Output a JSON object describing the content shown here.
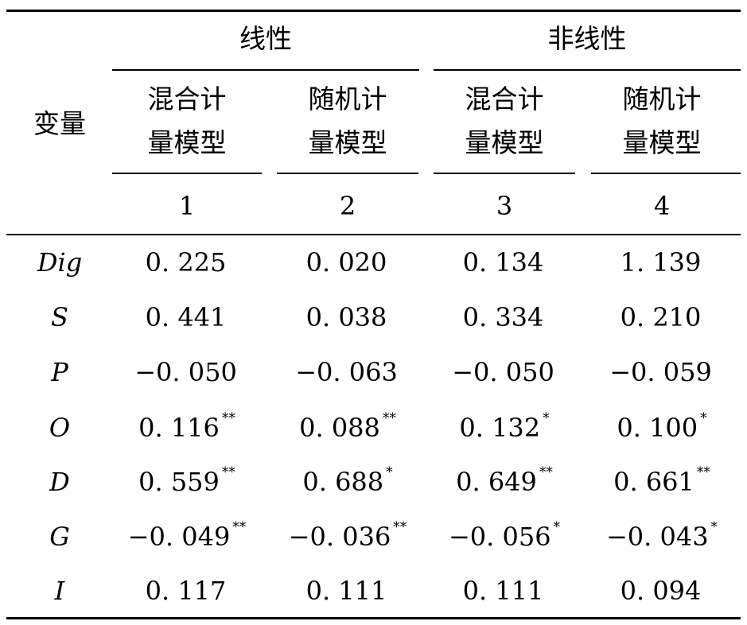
{
  "header": {
    "variable_label": "变量",
    "groups": [
      {
        "label": "线性"
      },
      {
        "label": "非线性"
      }
    ],
    "models": [
      {
        "line1": "混合计",
        "line2": "量模型",
        "number": "1"
      },
      {
        "line1": "随机计",
        "line2": "量模型",
        "number": "2"
      },
      {
        "line1": "混合计",
        "line2": "量模型",
        "number": "3"
      },
      {
        "line1": "随机计",
        "line2": "量模型",
        "number": "4"
      }
    ]
  },
  "rows": [
    {
      "variable": "Dig",
      "cells": [
        {
          "value": "0. 225",
          "sig": ""
        },
        {
          "value": "0. 020",
          "sig": ""
        },
        {
          "value": "0. 134",
          "sig": ""
        },
        {
          "value": "1. 139",
          "sig": ""
        }
      ]
    },
    {
      "variable": "S",
      "cells": [
        {
          "value": "0. 441",
          "sig": ""
        },
        {
          "value": "0. 038",
          "sig": ""
        },
        {
          "value": "0. 334",
          "sig": ""
        },
        {
          "value": "0. 210",
          "sig": ""
        }
      ]
    },
    {
      "variable": "P",
      "cells": [
        {
          "value": "−0. 050",
          "sig": ""
        },
        {
          "value": "−0. 063",
          "sig": ""
        },
        {
          "value": "−0. 050",
          "sig": ""
        },
        {
          "value": "−0. 059",
          "sig": ""
        }
      ]
    },
    {
      "variable": "O",
      "cells": [
        {
          "value": "0. 116",
          "sig": "**"
        },
        {
          "value": "0. 088",
          "sig": "**"
        },
        {
          "value": "0. 132",
          "sig": "*"
        },
        {
          "value": "0. 100",
          "sig": "*"
        }
      ]
    },
    {
      "variable": "D",
      "cells": [
        {
          "value": "0. 559",
          "sig": "**"
        },
        {
          "value": "0. 688",
          "sig": "*"
        },
        {
          "value": "0. 649",
          "sig": "**"
        },
        {
          "value": "0. 661",
          "sig": "**"
        }
      ]
    },
    {
      "variable": "G",
      "cells": [
        {
          "value": "−0. 049",
          "sig": "**"
        },
        {
          "value": "−0. 036",
          "sig": "**"
        },
        {
          "value": "−0. 056",
          "sig": "*"
        },
        {
          "value": "−0. 043",
          "sig": "*"
        }
      ]
    },
    {
      "variable": "I",
      "cells": [
        {
          "value": "0. 117",
          "sig": ""
        },
        {
          "value": "0. 111",
          "sig": ""
        },
        {
          "value": "0. 111",
          "sig": ""
        },
        {
          "value": "0. 094",
          "sig": ""
        }
      ]
    }
  ]
}
